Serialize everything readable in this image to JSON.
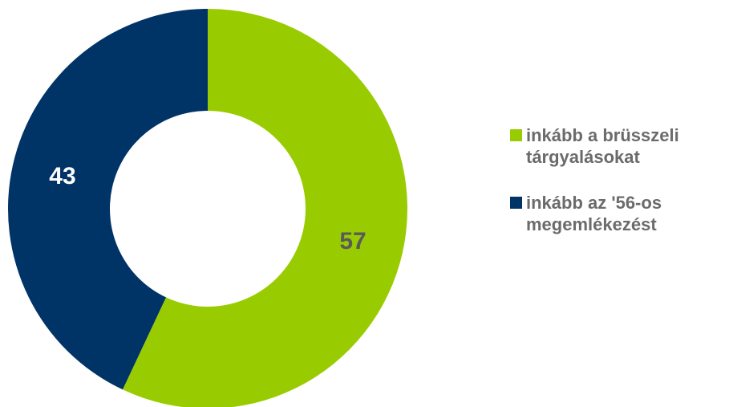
{
  "chart_data": {
    "type": "pie",
    "variant": "donut",
    "slices": [
      {
        "label": "inkább a brüsszeli tárgyalásokat",
        "value": 57,
        "color": "#99cc00",
        "value_label_color": "#5a5a5a"
      },
      {
        "label": "inkább az '56-os megemlékezést",
        "value": 43,
        "color": "#003366",
        "value_label_color": "#ffffff"
      }
    ],
    "legend_position": "right",
    "start_angle_deg": 0,
    "direction": "clockwise"
  },
  "legend": {
    "items": [
      {
        "line1": "inkább a brüsszeli",
        "line2": "tárgyalásokat",
        "color": "#99cc00"
      },
      {
        "line1": "inkább az '56-os",
        "line2": "megemlékezést",
        "color": "#003366"
      }
    ]
  }
}
